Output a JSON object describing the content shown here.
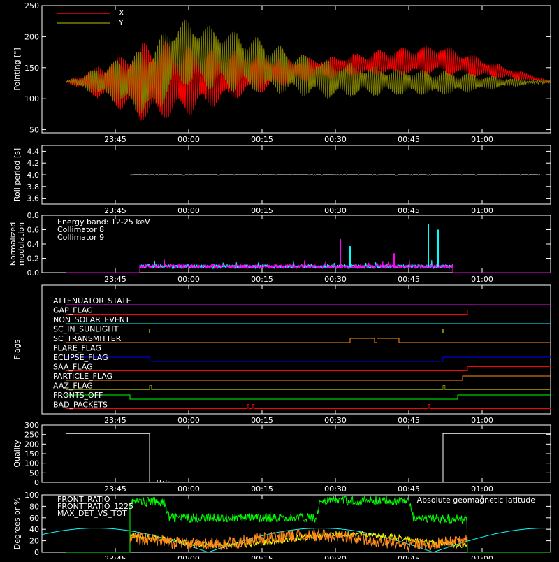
{
  "colors": {
    "background": "#000000",
    "axis": "#ffffff",
    "red": "#ff0000",
    "olive": "#808000",
    "cyan": "#00ffff",
    "magenta": "#ff00ff",
    "orange": "#ff8c1a",
    "yellow": "#ffff00",
    "green": "#00ff00",
    "blue": "#0000ff",
    "white": "#ffffff"
  },
  "time_ticks": [
    "23:45",
    "00:00",
    "00:15",
    "00:30",
    "00:45",
    "01:00"
  ],
  "chart_data": [
    {
      "type": "line",
      "ylabel": "Pointing [\"]",
      "ylim": [
        45,
        250
      ],
      "yticks": [
        "50",
        "100",
        "150",
        "200",
        "250"
      ],
      "legend": [
        {
          "name": "X",
          "color": "#ff0000"
        },
        {
          "name": "Y",
          "color": "#808000"
        }
      ],
      "series": [
        {
          "name": "X",
          "color": "#ff0000",
          "x": [
            "23:35",
            "23:52",
            "23:58",
            "00:10",
            "00:22",
            "00:30",
            "00:40",
            "00:50",
            "00:52",
            "01:14"
          ],
          "center": [
            127,
            127,
            128,
            138,
            145,
            150,
            158,
            162,
            162,
            127
          ],
          "amplitude": [
            0,
            70,
            60,
            40,
            20,
            18,
            22,
            25,
            25,
            0
          ]
        },
        {
          "name": "Y",
          "color": "#808000",
          "x": [
            "23:35",
            "23:52",
            "23:58",
            "00:10",
            "00:22",
            "00:30",
            "00:40",
            "00:50",
            "00:52",
            "01:14"
          ],
          "center": [
            127,
            127,
            175,
            160,
            140,
            130,
            128,
            125,
            125,
            127
          ],
          "amplitude": [
            0,
            60,
            55,
            50,
            35,
            30,
            22,
            20,
            20,
            0
          ]
        }
      ]
    },
    {
      "type": "line",
      "ylabel": "Roll period [s]",
      "ylim": [
        3.5,
        4.5
      ],
      "yticks": [
        "3.6",
        "3.8",
        "4.0",
        "4.2",
        "4.4"
      ],
      "series": [
        {
          "name": "",
          "color": "#ffffff",
          "value": 4.0
        }
      ]
    },
    {
      "type": "line",
      "ylabel": "Normalized modulation",
      "ylim": [
        0,
        0.8
      ],
      "yticks": [
        "0.0",
        "0.2",
        "0.4",
        "0.6",
        "0.8"
      ],
      "legend": [
        {
          "name": "Energy band: 12-25 keV",
          "color": "#ffffff"
        },
        {
          "name": "Collimator 8",
          "color": "#00ffff"
        },
        {
          "name": "Collimator 9",
          "color": "#ff00ff"
        }
      ],
      "spikes": [
        {
          "series": "Collimator 8",
          "x": "00:49",
          "y": 0.68
        },
        {
          "series": "Collimator 8",
          "x": "00:51",
          "y": 0.6
        },
        {
          "series": "Collimator 8",
          "x": "00:33",
          "y": 0.37
        },
        {
          "series": "Collimator 9",
          "x": "00:31",
          "y": 0.47
        },
        {
          "series": "Collimator 9",
          "x": "00:42",
          "y": 0.27
        }
      ]
    },
    {
      "type": "line",
      "ylabel": "Flags",
      "flags": [
        {
          "name": "ATTENUATOR_STATE",
          "color": "#ff00ff"
        },
        {
          "name": "GAP_FLAG",
          "color": "#ff0000"
        },
        {
          "name": "NON_SOLAR_EVENT",
          "color": "#00ffff"
        },
        {
          "name": "SC_IN_SUNLIGHT",
          "color": "#ffff00"
        },
        {
          "name": "SC_TRANSMITTER",
          "color": "#ff8c1a"
        },
        {
          "name": "FLARE_FLAG",
          "color": "#ffff00"
        },
        {
          "name": "ECLIPSE_FLAG",
          "color": "#0000ff"
        },
        {
          "name": "SAA_FLAG",
          "color": "#ff0000"
        },
        {
          "name": "PARTICLE_FLAG",
          "color": "#ff8c1a"
        },
        {
          "name": "AAZ_FLAG",
          "color": "#808000"
        },
        {
          "name": "FRONTS_OFF",
          "color": "#00ff00"
        },
        {
          "name": "BAD_PACKETS",
          "color": "#ff0000"
        }
      ]
    },
    {
      "type": "line",
      "ylabel": "Quality",
      "ylim": [
        0,
        300
      ],
      "yticks": [
        "0",
        "50",
        "100",
        "150",
        "200",
        "250",
        "300"
      ],
      "series": [
        {
          "name": "",
          "color": "#ffffff",
          "x": [
            "23:35",
            "23:52",
            "23:52",
            "00:52",
            "00:52",
            "01:14"
          ],
          "y": [
            255,
            255,
            0,
            0,
            255,
            255
          ]
        }
      ]
    },
    {
      "type": "line",
      "ylabel": "Degrees or %",
      "ylim": [
        0,
        100
      ],
      "yticks": [
        "0",
        "20",
        "40",
        "60",
        "80",
        "100"
      ],
      "legend": [
        {
          "name": "FRONT_RATIO",
          "color": "#ffff00"
        },
        {
          "name": "FRONT_RATIO_1225",
          "color": "#00ff00"
        },
        {
          "name": "MAX_DET_VS_TOT",
          "color": "#ff8c1a"
        }
      ],
      "annotation": {
        "text": "Absolute geomagnetic latitude",
        "color": "#00ffff"
      },
      "green_levels": {
        "x": [
          "23:48",
          "23:55",
          "23:56",
          "00:26",
          "00:27",
          "00:45",
          "00:46",
          "00:57"
        ],
        "y": [
          88,
          88,
          60,
          60,
          90,
          90,
          58,
          58
        ]
      }
    }
  ]
}
